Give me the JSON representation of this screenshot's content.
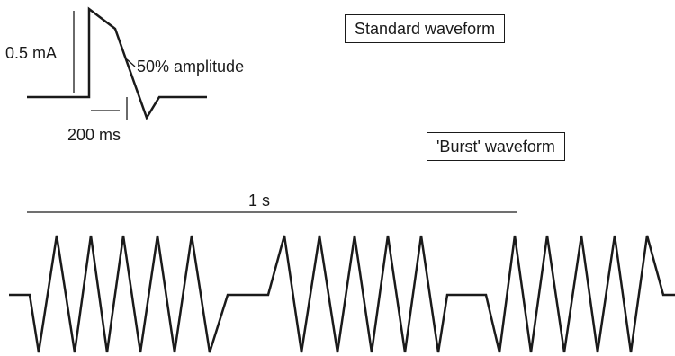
{
  "labels": {
    "amplitude": "0.5 mA",
    "half_amplitude": "50% amplitude",
    "pulse_width": "200 ms",
    "standard_title": "Standard waveform",
    "burst_title": "'Burst' waveform",
    "period": "1 s"
  }
}
